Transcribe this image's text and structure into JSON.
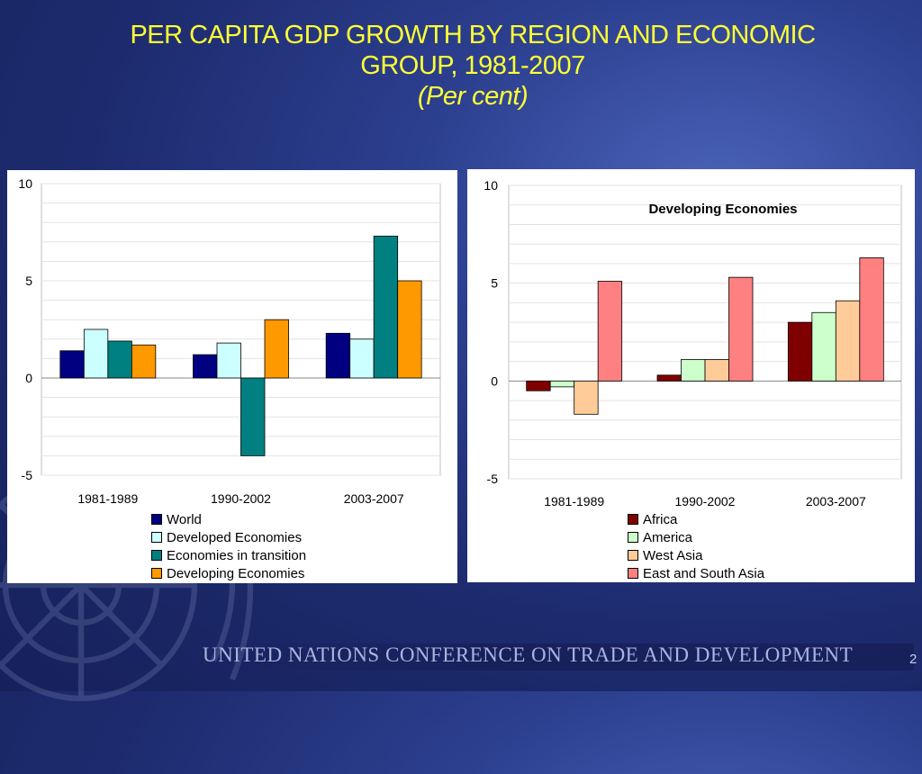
{
  "slide": {
    "title_line1": "PER CAPITA GDP GROWTH  BY REGION AND ECONOMIC",
    "title_line2": "GROUP, 1981-2007",
    "subtitle": "(Per cent)",
    "footer": "UNITED NATIONS CONFERENCE ON TRADE AND DEVELOPMENT",
    "page_number": "2",
    "emblem_icon": "un-emblem-icon"
  },
  "chart_data": [
    {
      "type": "bar",
      "title": "",
      "categories": [
        "1981-1989",
        "1990-2002",
        "2003-2007"
      ],
      "ylim": [
        -5,
        10
      ],
      "yticks": [
        "10",
        "5",
        "0",
        "-5"
      ],
      "grid": true,
      "legend_position": "bottom",
      "series": [
        {
          "name": "World",
          "color": "#000080",
          "values": [
            1.4,
            1.2,
            2.3
          ]
        },
        {
          "name": "Developed Economies",
          "color": "#ccffff",
          "values": [
            2.5,
            1.8,
            2.0
          ]
        },
        {
          "name": "Economies in transition",
          "color": "#008080",
          "values": [
            1.9,
            -4.0,
            7.3
          ]
        },
        {
          "name": "Developing Economies",
          "color": "#ff9900",
          "values": [
            1.7,
            3.0,
            5.0
          ]
        }
      ]
    },
    {
      "type": "bar",
      "title": "Developing Economies",
      "categories": [
        "1981-1989",
        "1990-2002",
        "2003-2007"
      ],
      "ylim": [
        -5,
        10
      ],
      "yticks": [
        "10",
        "5",
        "0",
        "-5"
      ],
      "grid": true,
      "legend_position": "bottom",
      "series": [
        {
          "name": "Africa",
          "color": "#800000",
          "values": [
            -0.5,
            0.3,
            3.0
          ]
        },
        {
          "name": "America",
          "color": "#ccffcc",
          "values": [
            -0.3,
            1.1,
            3.5
          ]
        },
        {
          "name": "West Asia",
          "color": "#ffcc99",
          "values": [
            -1.7,
            1.1,
            4.1
          ]
        },
        {
          "name": "East and South Asia",
          "color": "#ff8080",
          "values": [
            5.1,
            5.3,
            6.3
          ]
        }
      ]
    }
  ]
}
